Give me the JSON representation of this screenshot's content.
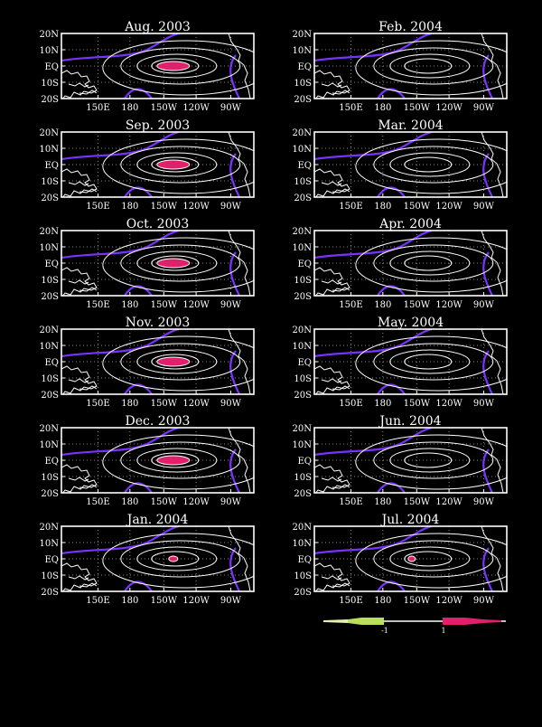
{
  "panels": [
    {
      "title": "Aug. 2003"
    },
    {
      "title": "Feb. 2004"
    },
    {
      "title": "Sep. 2003"
    },
    {
      "title": "Mar. 2004"
    },
    {
      "title": "Oct. 2003"
    },
    {
      "title": "Apr. 2004"
    },
    {
      "title": "Nov. 2003"
    },
    {
      "title": "May. 2004"
    },
    {
      "title": "Dec. 2003"
    },
    {
      "title": "Jun. 2004"
    },
    {
      "title": "Jan. 2004"
    },
    {
      "title": "Jul. 2004"
    }
  ],
  "y_ticks": [
    "20N",
    "10N",
    "EQ",
    "10S",
    "20S"
  ],
  "x_ticks": [
    "150E",
    "180",
    "150W",
    "120W",
    "90W"
  ],
  "legend": {
    "low_label": "-1",
    "high_label": "1",
    "low_color": "#b8e05a",
    "high_color": "#e0206a"
  },
  "colors": {
    "background": "#000000",
    "frame": "#ffffff",
    "contour": "#ffffff",
    "zero_contour": "#7a33ff",
    "max_fill": "#e0206a"
  }
}
